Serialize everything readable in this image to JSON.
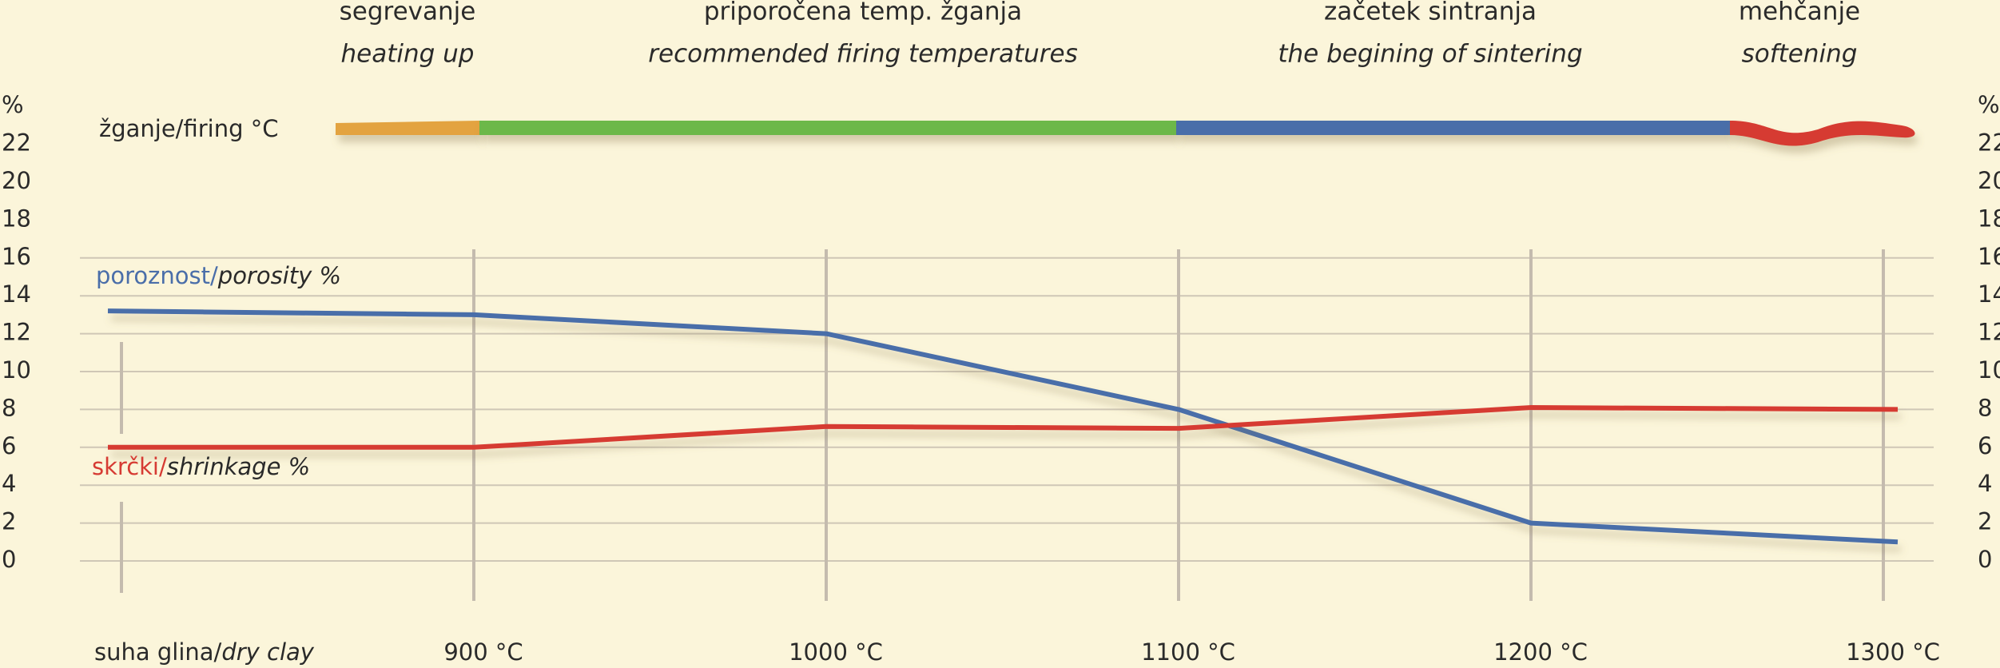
{
  "chart_data": {
    "type": "line",
    "firing_label": "žganje/firing °C",
    "phases": [
      {
        "label": "segrevanje",
        "label_en": "heating up",
        "color": "#e3a33f"
      },
      {
        "label": "priporočena temp. žganja",
        "label_en": "recommended firing temperatures",
        "color": "#6cb84a"
      },
      {
        "label": "začetek sintranja",
        "label_en": "the begining of sintering",
        "color": "#4a6ea9"
      },
      {
        "label": "mehčanje",
        "label_en": "softening",
        "color": "#d63b33"
      }
    ],
    "categories": [
      "suha glina/dry clay",
      "900 °C",
      "1000 °C",
      "1100 °C",
      "1200 °C",
      "1300 °C"
    ],
    "series": [
      {
        "name": "poroznost/porosity %",
        "color": "#4a6ea9",
        "values": [
          13.2,
          13,
          12,
          8,
          2,
          1
        ]
      },
      {
        "name": "skrčki/shrinkage %",
        "color": "#d63b33",
        "values": [
          6,
          6,
          7.1,
          7,
          8.1,
          8
        ]
      }
    ],
    "y_label": "%",
    "ylim": [
      0,
      22
    ],
    "yticks": [
      0,
      2,
      4,
      6,
      8,
      10,
      12,
      14,
      16,
      18,
      20,
      22
    ],
    "grid": true
  }
}
